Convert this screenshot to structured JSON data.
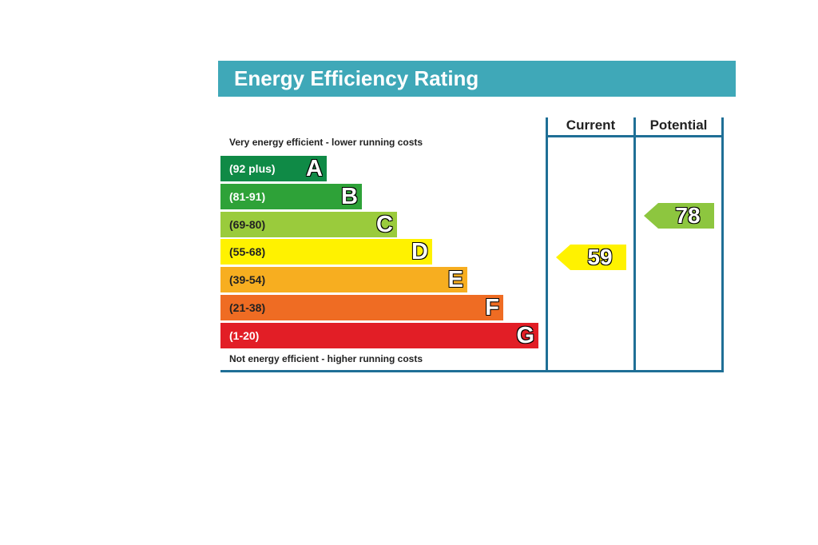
{
  "title": "Energy Efficiency Rating",
  "top_note": "Very energy efficient - lower running costs",
  "bottom_note": "Not energy efficient - higher running costs",
  "columns": {
    "current": "Current",
    "potential": "Potential"
  },
  "chart_data": {
    "type": "bar",
    "title": "Energy Efficiency Rating",
    "bands": [
      {
        "letter": "A",
        "range": "(92 plus)",
        "color": "#0f8a46"
      },
      {
        "letter": "B",
        "range": "(81-91)",
        "color": "#2ea238"
      },
      {
        "letter": "C",
        "range": "(69-80)",
        "color": "#9acb3c"
      },
      {
        "letter": "D",
        "range": "(55-68)",
        "color": "#fff200"
      },
      {
        "letter": "E",
        "range": "(39-54)",
        "color": "#f7ae20"
      },
      {
        "letter": "F",
        "range": "(21-38)",
        "color": "#ef6c23"
      },
      {
        "letter": "G",
        "range": "(1-20)",
        "color": "#e21e26"
      }
    ],
    "current": {
      "value": "59",
      "band": "D",
      "color": "#fff200"
    },
    "potential": {
      "value": "78",
      "band": "C",
      "color": "#8dc63f"
    }
  }
}
